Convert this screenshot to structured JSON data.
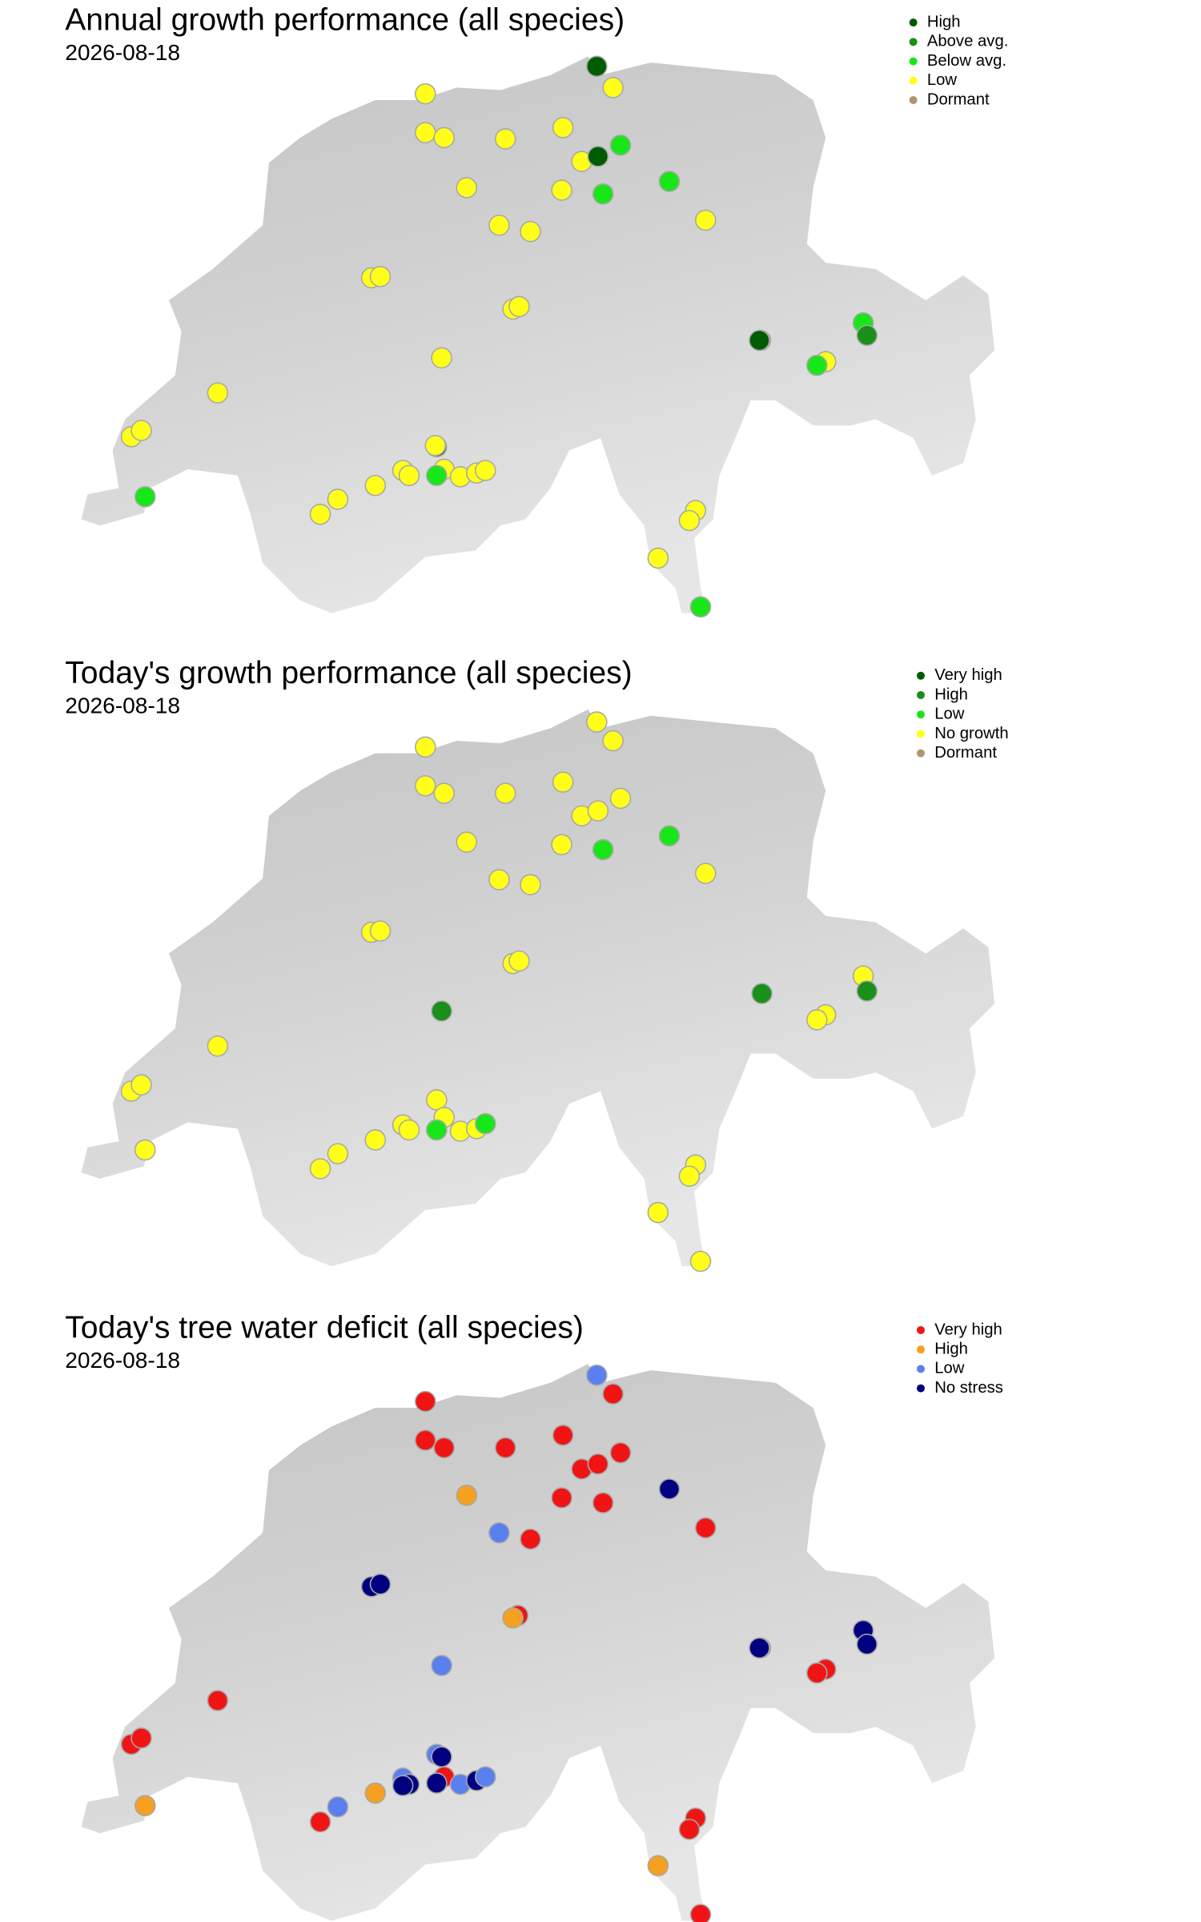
{
  "panels": [
    {
      "title": "Annual growth performance (all species)",
      "date": "2026-08-18",
      "legend": [
        {
          "label": "High",
          "color": "#005c00"
        },
        {
          "label": "Above avg.",
          "color": "#1a8f1a"
        },
        {
          "label": "Below avg.",
          "color": "#19e619"
        },
        {
          "label": "Low",
          "color": "#ffff1a"
        },
        {
          "label": "Dormant",
          "color": "#b09670"
        }
      ]
    },
    {
      "title": "Today's growth performance (all species)",
      "date": "2026-08-18",
      "legend": [
        {
          "label": "Very high",
          "color": "#005c00"
        },
        {
          "label": "High",
          "color": "#1a8f1a"
        },
        {
          "label": "Low",
          "color": "#19e619"
        },
        {
          "label": "No growth",
          "color": "#ffff1a"
        },
        {
          "label": "Dormant",
          "color": "#b09670"
        }
      ]
    },
    {
      "title": "Today's tree water deficit (all species)",
      "date": "2026-08-18",
      "legend": [
        {
          "label": "Very high",
          "color": "#f01414"
        },
        {
          "label": "High",
          "color": "#f5a020"
        },
        {
          "label": "Low",
          "color": "#5a80ef"
        },
        {
          "label": "No stress",
          "color": "#000080"
        }
      ]
    }
  ]
}
